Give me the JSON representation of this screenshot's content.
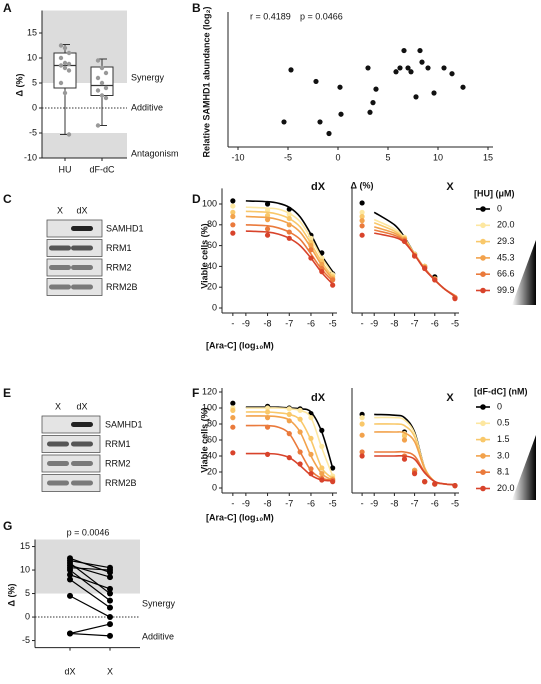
{
  "chart_data": [
    {
      "panel": "A",
      "type": "box",
      "ylabel": "Δ (%)",
      "categories": [
        "HU",
        "dF-dC"
      ],
      "boxes": [
        {
          "min": -5.3,
          "q1": 4,
          "median": 8.5,
          "q3": 11,
          "max": 12.7
        },
        {
          "min": -3.5,
          "q1": 2.5,
          "median": 4.5,
          "q3": 8.2,
          "max": 9.8
        }
      ],
      "points": [
        [
          12.5,
          12,
          11,
          10,
          9,
          8.8,
          8.5,
          8,
          7.5,
          5,
          3,
          -5.3
        ],
        [
          9.5,
          8,
          7,
          6,
          5,
          4,
          3.5,
          2.5,
          2,
          -3.5
        ]
      ],
      "color": "#999999",
      "ylim": [
        -10,
        19.5
      ],
      "yticks": [
        -10,
        -5,
        0,
        5,
        10,
        15
      ],
      "shade": [
        [
          5,
          19.5
        ],
        [
          -10,
          -5
        ]
      ],
      "reference_line": 0,
      "annotations": [
        "Synergy",
        "Additive",
        "Antagonism"
      ]
    },
    {
      "panel": "B",
      "type": "scatter",
      "xlabel": "Δ (%)",
      "ylabel": "Relative SAMHD1 abundance (log₂)",
      "annotations": [
        "r = 0.4189",
        "p = 0.0466"
      ],
      "color": "#111111",
      "x": [
        -5.4,
        -4.7,
        -2.2,
        -1.8,
        -0.9,
        0.2,
        0.3,
        3.0,
        3.2,
        3.5,
        3.8,
        5.8,
        6.2,
        6.6,
        7.0,
        7.3,
        7.8,
        8.2,
        8.4,
        9.0,
        9.6,
        10.6,
        11.4,
        12.5
      ],
      "y": [
        -1.2,
        1.5,
        0.9,
        -1.2,
        -1.8,
        0.6,
        -0.8,
        1.6,
        -0.7,
        -0.2,
        0.5,
        1.4,
        1.6,
        2.5,
        1.6,
        1.4,
        0.1,
        2.5,
        1.9,
        1.6,
        0.3,
        1.6,
        1.3,
        0.6
      ],
      "xlim": [
        -11,
        15.5
      ],
      "xticks": [
        -10,
        -5,
        0,
        5,
        10,
        15
      ],
      "ylim": [
        -2.5,
        4.5
      ]
    },
    {
      "panel": "D",
      "type": "dose",
      "title": "dX",
      "ylabel": "Viable cells (%)",
      "xlabel": "[Ara-C] (log₁₀M)",
      "xlim": [
        -10.1,
        -4.8
      ],
      "xticks": [
        {
          "value": -9.6,
          "label": "-"
        },
        -9,
        -8,
        -7,
        -6,
        -5
      ],
      "ylim": [
        0,
        115
      ],
      "yticks": [
        0,
        20,
        40,
        60,
        80,
        100
      ],
      "x": [
        -9.6,
        -8,
        -7,
        -6,
        -5.5,
        -5
      ],
      "fit_x": [
        -9,
        -8,
        -7.5,
        -7,
        -6.5,
        -6,
        -5.5,
        -5
      ],
      "series": [
        {
          "color": "#000000",
          "values": [
            103,
            100,
            95,
            70,
            53,
            33
          ],
          "fit": [
            103,
            102.2,
            100.7,
            96.8,
            87.6,
            70.8,
            50.3,
            35
          ]
        },
        {
          "color": "#fde7a0",
          "values": [
            98,
            94,
            90,
            67,
            48,
            32
          ],
          "fit": [
            97,
            96,
            95,
            91,
            83,
            67,
            48,
            33
          ]
        },
        {
          "color": "#f9c86a",
          "values": [
            92,
            89,
            86,
            63,
            45,
            30
          ],
          "fit": [
            93,
            92,
            90,
            86,
            78,
            62,
            44,
            30
          ]
        },
        {
          "color": "#f2a24c",
          "values": [
            88,
            85,
            80,
            60,
            42,
            28
          ],
          "fit": [
            88,
            87,
            85,
            81,
            73,
            58,
            41,
            28
          ]
        },
        {
          "color": "#ea7a3c",
          "values": [
            80,
            76,
            73,
            56,
            38,
            27
          ],
          "fit": [
            80,
            79,
            77,
            73,
            66,
            52,
            37,
            26
          ]
        },
        {
          "color": "#d8432b",
          "values": [
            72,
            70,
            67,
            48,
            35,
            22
          ],
          "fit": [
            74,
            73,
            71,
            67,
            60,
            48,
            34,
            23
          ]
        }
      ]
    },
    {
      "type": "dose",
      "title": "X",
      "legend_title": "[HU] (μM)",
      "legend": "right",
      "xlim": [
        -10.1,
        -4.8
      ],
      "xticks": [
        {
          "value": -9.6,
          "label": "-"
        },
        -9,
        -8,
        -7,
        -6,
        -5
      ],
      "ylim": [
        0,
        115
      ],
      "x": [
        -9.6,
        -7.5,
        -7,
        -6.5,
        -6,
        -5
      ],
      "fit_x": [
        -9,
        -8,
        -7.5,
        -7,
        -6.5,
        -6,
        -5.5,
        -5
      ],
      "series": [
        {
          "name": "0",
          "color": "#000000",
          "values": [
            101,
            67,
            52,
            40,
            30,
            10
          ],
          "fit": [
            92,
            80,
            68,
            52,
            38,
            27,
            18,
            12
          ]
        },
        {
          "name": "20.0",
          "color": "#fde7a0",
          "values": [
            92,
            68,
            52,
            40,
            28,
            10
          ],
          "fit": [
            85,
            76,
            67,
            52,
            38,
            27,
            18,
            12
          ]
        },
        {
          "name": "29.3",
          "color": "#f9c86a",
          "values": [
            88,
            67,
            51,
            40,
            28,
            10
          ],
          "fit": [
            82,
            74,
            66,
            52,
            38,
            27,
            18,
            12
          ]
        },
        {
          "name": "45.3",
          "color": "#f2a24c",
          "values": [
            84,
            66,
            51,
            39,
            28,
            10
          ],
          "fit": [
            78,
            72,
            65,
            51,
            38,
            27,
            18,
            12
          ]
        },
        {
          "name": "66.6",
          "color": "#ea7a3c",
          "values": [
            79,
            65,
            50,
            39,
            27,
            10
          ],
          "fit": [
            75,
            70,
            64,
            51,
            38,
            27,
            18,
            12
          ]
        },
        {
          "name": "99.9",
          "color": "#d8432b",
          "values": [
            70,
            64,
            50,
            38,
            27,
            9
          ],
          "fit": [
            72,
            68,
            63,
            51,
            37,
            27,
            18,
            11
          ]
        }
      ]
    },
    {
      "panel": "F",
      "type": "dose",
      "title": "dX",
      "ylabel": "Viable cells (%)",
      "xlabel": "[Ara-C] (log₁₀M)",
      "xlim": [
        -10.1,
        -4.8
      ],
      "xticks": [
        {
          "value": -9.6,
          "label": "-"
        },
        -9,
        -8,
        -7,
        -6,
        -5
      ],
      "ylim": [
        0,
        125
      ],
      "yticks": [
        0,
        20,
        40,
        60,
        80,
        100,
        120
      ],
      "x": [
        -9.6,
        -8,
        -7,
        -6.5,
        -6,
        -5.5,
        -5
      ],
      "fit_x": [
        -9,
        -8,
        -7.5,
        -7,
        -6.5,
        -6,
        -5.5,
        -5
      ],
      "series": [
        {
          "color": "#000000",
          "values": [
            106,
            102,
            100,
            99,
            93,
            72,
            25
          ],
          "fit": [
            101,
            101,
            101,
            100,
            99,
            95,
            70,
            25
          ]
        },
        {
          "color": "#fde7a0",
          "values": [
            100,
            100,
            99,
            97,
            88,
            52,
            15
          ],
          "fit": [
            100,
            100,
            100,
            99,
            97,
            88,
            50,
            15
          ]
        },
        {
          "color": "#f9c86a",
          "values": [
            97,
            95,
            92,
            86,
            62,
            25,
            12
          ],
          "fit": [
            95,
            95,
            94,
            92,
            85,
            60,
            25,
            12
          ]
        },
        {
          "color": "#f2a24c",
          "values": [
            88,
            88,
            84,
            70,
            42,
            18,
            10
          ],
          "fit": [
            90,
            90,
            89,
            85,
            70,
            40,
            18,
            10
          ]
        },
        {
          "color": "#ea7a3c",
          "values": [
            76,
            76,
            68,
            45,
            24,
            12,
            10
          ],
          "fit": [
            78,
            78,
            76,
            68,
            45,
            22,
            12,
            10
          ]
        },
        {
          "color": "#d8432b",
          "values": [
            44,
            42,
            38,
            30,
            18,
            10,
            8
          ],
          "fit": [
            43,
            43,
            42,
            38,
            28,
            16,
            10,
            9
          ]
        }
      ]
    },
    {
      "type": "dose",
      "title": "X",
      "legend_title": "[dF-dC] (nM)",
      "legend": "right",
      "xlim": [
        -10.1,
        -4.8
      ],
      "xticks": [
        {
          "value": -9.6,
          "label": "-"
        },
        -9,
        -8,
        -7,
        -6,
        -5
      ],
      "ylim": [
        0,
        125
      ],
      "x": [
        -9.6,
        -7.5,
        -7,
        -6.5,
        -6,
        -5
      ],
      "fit_x": [
        -9,
        -8,
        -7.5,
        -7,
        -6.5,
        -6,
        -5.5,
        -5
      ],
      "series": [
        {
          "name": "0",
          "color": "#000000",
          "values": [
            92,
            70,
            22,
            8,
            5,
            3
          ],
          "fit": [
            92,
            91,
            88,
            70,
            25,
            8,
            5,
            4
          ]
        },
        {
          "name": "0.5",
          "color": "#fde7a0",
          "values": [
            88,
            68,
            22,
            8,
            5,
            3
          ],
          "fit": [
            88,
            88,
            85,
            68,
            25,
            8,
            5,
            4
          ]
        },
        {
          "name": "1.5",
          "color": "#f9c86a",
          "values": [
            80,
            65,
            22,
            8,
            5,
            3
          ],
          "fit": [
            80,
            80,
            78,
            64,
            25,
            8,
            5,
            4
          ]
        },
        {
          "name": "3.0",
          "color": "#f2a24c",
          "values": [
            66,
            60,
            22,
            8,
            5,
            3
          ],
          "fit": [
            70,
            70,
            69,
            58,
            24,
            8,
            5,
            4
          ]
        },
        {
          "name": "8.1",
          "color": "#ea7a3c",
          "values": [
            45,
            40,
            20,
            8,
            5,
            3
          ],
          "fit": [
            45,
            45,
            45,
            40,
            20,
            8,
            5,
            4
          ]
        },
        {
          "name": "20.0",
          "color": "#d8432b",
          "values": [
            40,
            36,
            18,
            8,
            5,
            3
          ],
          "fit": [
            40,
            40,
            40,
            36,
            19,
            8,
            5,
            4
          ]
        }
      ]
    },
    {
      "panel": "G",
      "type": "paired",
      "ylabel": "Δ (%)",
      "categories": [
        "dX",
        "X"
      ],
      "color": "#000000",
      "values": [
        [
          12.5,
          9.5
        ],
        [
          12,
          10.5
        ],
        [
          11.5,
          5
        ],
        [
          11,
          8.5
        ],
        [
          10.5,
          10
        ],
        [
          10,
          3.5
        ],
        [
          9,
          6
        ],
        [
          8,
          2
        ],
        [
          4.5,
          0
        ],
        [
          -3.5,
          -1.5
        ],
        [
          -3.5,
          -4
        ]
      ],
      "ylim": [
        -6.5,
        16.5
      ],
      "yticks": [
        -5,
        0,
        5,
        10,
        15
      ],
      "shade": [
        [
          5,
          16.5
        ]
      ],
      "reference_line": 0,
      "annotations": [
        "p = 0.0046",
        "Synergy",
        "Additive"
      ]
    }
  ],
  "blots": [
    {
      "panel": "C",
      "lanes": [
        "X",
        "dX"
      ],
      "proteins": [
        "SAMHD1",
        "RRM1",
        "RRM2",
        "RRM2B"
      ]
    },
    {
      "panel": "E",
      "lanes": [
        "X",
        "dX"
      ],
      "proteins": [
        "SAMHD1",
        "RRM1",
        "RRM2",
        "RRM2B"
      ]
    }
  ]
}
